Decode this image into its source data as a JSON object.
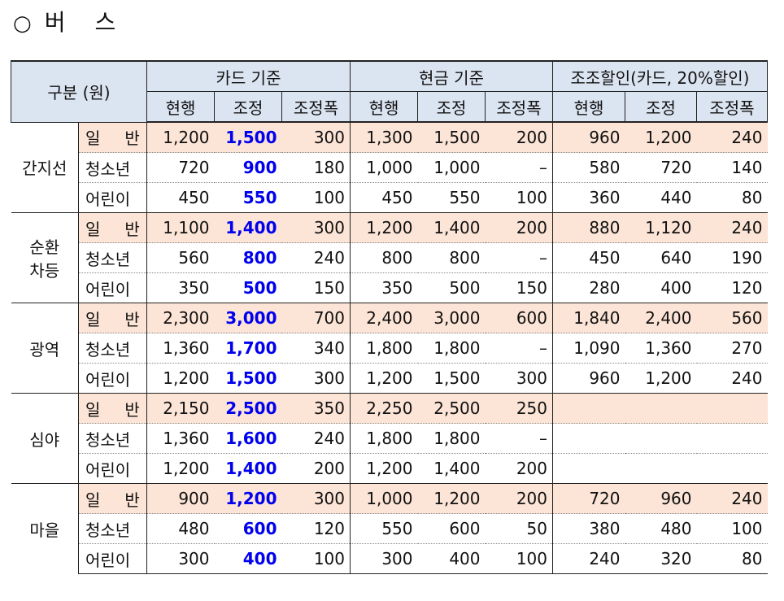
{
  "title": {
    "marker": "○",
    "chars": [
      "버",
      "스"
    ]
  },
  "header": {
    "group_col": "구분 (원)",
    "groups": [
      "카드 기준",
      "현금 기준",
      "조조할인(카드, 20%할인)"
    ],
    "sub": [
      "현행",
      "조정",
      "조정폭",
      "현행",
      "조정",
      "조정폭",
      "현행",
      "조정",
      "조정폭"
    ]
  },
  "rows": [
    {
      "cat": "간지선",
      "cat2": "",
      "items": [
        {
          "label": [
            "일",
            "반"
          ],
          "v": [
            "1,200",
            "1,500",
            "300",
            "1,300",
            "1,500",
            "200",
            "960",
            "1,200",
            "240"
          ]
        },
        {
          "label": [
            "청소년"
          ],
          "v": [
            "720",
            "900",
            "180",
            "1,000",
            "1,000",
            "–",
            "580",
            "720",
            "140"
          ]
        },
        {
          "label": [
            "어린이"
          ],
          "v": [
            "450",
            "550",
            "100",
            "450",
            "550",
            "100",
            "360",
            "440",
            "80"
          ]
        }
      ]
    },
    {
      "cat": "순환",
      "cat2": "차등",
      "items": [
        {
          "label": [
            "일",
            "반"
          ],
          "v": [
            "1,100",
            "1,400",
            "300",
            "1,200",
            "1,400",
            "200",
            "880",
            "1,120",
            "240"
          ]
        },
        {
          "label": [
            "청소년"
          ],
          "v": [
            "560",
            "800",
            "240",
            "800",
            "800",
            "–",
            "450",
            "640",
            "190"
          ]
        },
        {
          "label": [
            "어린이"
          ],
          "v": [
            "350",
            "500",
            "150",
            "350",
            "500",
            "150",
            "280",
            "400",
            "120"
          ]
        }
      ]
    },
    {
      "cat": "광역",
      "cat2": "",
      "items": [
        {
          "label": [
            "일",
            "반"
          ],
          "v": [
            "2,300",
            "3,000",
            "700",
            "2,400",
            "3,000",
            "600",
            "1,840",
            "2,400",
            "560"
          ]
        },
        {
          "label": [
            "청소년"
          ],
          "v": [
            "1,360",
            "1,700",
            "340",
            "1,800",
            "1,800",
            "–",
            "1,090",
            "1,360",
            "270"
          ]
        },
        {
          "label": [
            "어린이"
          ],
          "v": [
            "1,200",
            "1,500",
            "300",
            "1,200",
            "1,500",
            "300",
            "960",
            "1,200",
            "240"
          ]
        }
      ]
    },
    {
      "cat": "심야",
      "cat2": "",
      "items": [
        {
          "label": [
            "일",
            "반"
          ],
          "v": [
            "2,150",
            "2,500",
            "350",
            "2,250",
            "2,500",
            "250",
            "",
            "",
            ""
          ]
        },
        {
          "label": [
            "청소년"
          ],
          "v": [
            "1,360",
            "1,600",
            "240",
            "1,800",
            "1,800",
            "–",
            "",
            "",
            ""
          ]
        },
        {
          "label": [
            "어린이"
          ],
          "v": [
            "1,200",
            "1,400",
            "200",
            "1,200",
            "1,400",
            "200",
            "",
            "",
            ""
          ]
        }
      ]
    },
    {
      "cat": "마을",
      "cat2": "",
      "items": [
        {
          "label": [
            "일",
            "반"
          ],
          "v": [
            "900",
            "1,200",
            "300",
            "1,000",
            "1,200",
            "200",
            "720",
            "960",
            "240"
          ]
        },
        {
          "label": [
            "청소년"
          ],
          "v": [
            "480",
            "600",
            "120",
            "550",
            "600",
            "50",
            "380",
            "480",
            "100"
          ]
        },
        {
          "label": [
            "어린이"
          ],
          "v": [
            "300",
            "400",
            "100",
            "300",
            "400",
            "100",
            "240",
            "320",
            "80"
          ]
        }
      ]
    }
  ]
}
